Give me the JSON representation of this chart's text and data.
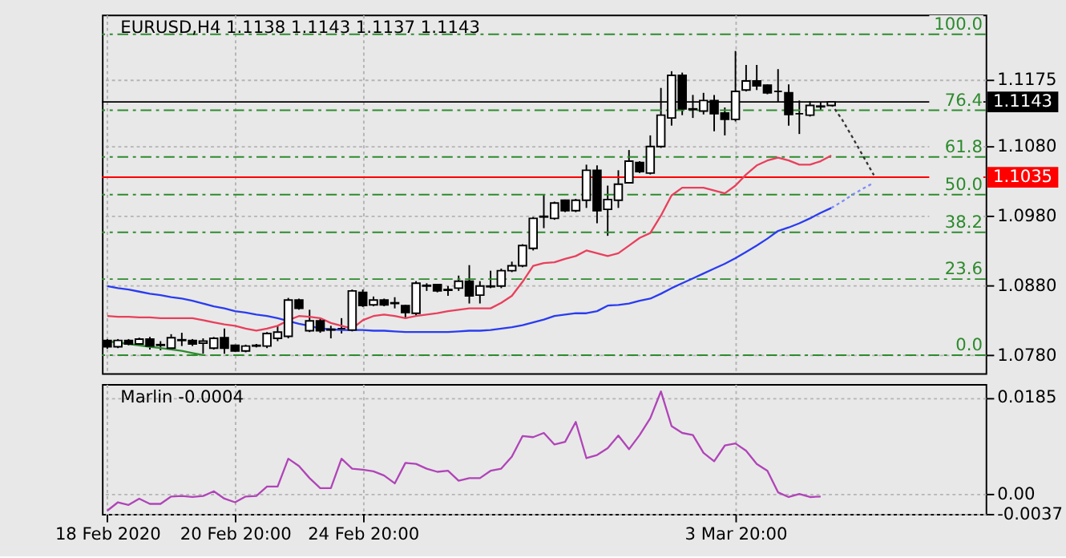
{
  "chart_data": [
    {
      "type": "candlestick",
      "title": "EURUSD,H4  1.1138 1.1143 1.1137 1.1143",
      "categories": [
        null,
        null,
        null,
        null,
        null,
        null,
        null,
        null,
        null,
        null,
        null,
        null,
        null,
        null,
        null,
        null,
        null,
        null,
        null,
        null,
        null,
        null,
        null,
        null,
        null,
        null,
        null,
        null,
        null,
        null,
        null,
        null,
        null,
        null,
        null,
        null,
        null,
        null,
        null,
        null,
        null,
        null,
        null,
        null,
        null,
        null,
        null,
        null,
        null,
        null,
        null,
        null,
        null,
        null,
        null,
        null,
        null,
        null,
        null,
        null,
        null,
        null,
        null,
        null,
        null,
        null,
        null,
        null,
        null,
        null,
        null,
        null,
        null,
        null,
        null,
        null,
        null,
        null,
        null,
        null,
        null,
        null,
        null
      ],
      "ohlc": [
        [
          1.0801,
          1.0803,
          1.0789,
          1.0792
        ],
        [
          1.0792,
          1.0803,
          1.079,
          1.0801
        ],
        [
          1.0801,
          1.0803,
          1.0794,
          1.0796
        ],
        [
          1.0796,
          1.0805,
          1.0794,
          1.0803
        ],
        [
          1.0803,
          1.0806,
          1.0788,
          1.0793
        ],
        [
          1.0794,
          1.08,
          1.0787,
          1.0795
        ],
        [
          1.079,
          1.081,
          1.0788,
          1.0805
        ],
        [
          1.0802,
          1.0812,
          1.0793,
          1.0801
        ],
        [
          1.0801,
          1.0803,
          1.0793,
          1.0796
        ],
        [
          1.0797,
          1.0804,
          1.0782,
          1.08
        ],
        [
          1.079,
          1.0806,
          1.0788,
          1.0804
        ],
        [
          1.0805,
          1.0818,
          1.0782,
          1.079
        ],
        [
          1.0794,
          1.0795,
          1.0785,
          1.0786
        ],
        [
          1.0786,
          1.0795,
          1.0784,
          1.0793
        ],
        [
          1.0793,
          1.0796,
          1.0791,
          1.0794
        ],
        [
          1.0793,
          1.0813,
          1.079,
          1.0811
        ],
        [
          1.0804,
          1.0822,
          1.08,
          1.0813
        ],
        [
          1.0807,
          1.0862,
          1.0804,
          1.0859
        ],
        [
          1.0859,
          1.0861,
          1.0845,
          1.0847
        ],
        [
          1.0815,
          1.0845,
          1.0813,
          1.0829
        ],
        [
          1.0829,
          1.0832,
          1.0812,
          1.0815
        ],
        [
          1.0816,
          1.0822,
          1.0804,
          1.0817
        ],
        [
          1.0818,
          1.0833,
          1.0811,
          1.0818
        ],
        [
          1.0816,
          1.0874,
          1.0814,
          1.0872
        ],
        [
          1.087,
          1.0874,
          1.0849,
          1.0851
        ],
        [
          1.0852,
          1.0864,
          1.085,
          1.0859
        ],
        [
          1.0859,
          1.0861,
          1.085,
          1.0852
        ],
        [
          1.0854,
          1.0863,
          1.0847,
          1.0855
        ],
        [
          1.0851,
          1.0852,
          1.0833,
          1.0841
        ],
        [
          1.084,
          1.0886,
          1.0836,
          1.0883
        ],
        [
          1.088,
          1.0883,
          1.0872,
          1.0879
        ],
        [
          1.0881,
          1.0882,
          1.087,
          1.0872
        ],
        [
          1.0873,
          1.0879,
          1.0865,
          1.0874
        ],
        [
          1.0876,
          1.0894,
          1.0872,
          1.0886
        ],
        [
          1.0886,
          1.0909,
          1.0854,
          1.0865
        ],
        [
          1.0866,
          1.0886,
          1.0854,
          1.0879
        ],
        [
          1.0878,
          1.0901,
          1.0876,
          1.0879
        ],
        [
          1.0879,
          1.0904,
          1.0876,
          1.0901
        ],
        [
          1.0901,
          1.0914,
          1.0899,
          1.0908
        ],
        [
          1.0908,
          1.0939,
          1.0906,
          1.0937
        ],
        [
          1.0933,
          1.0978,
          1.093,
          1.0976
        ],
        [
          1.0978,
          1.101,
          1.0962,
          1.0979
        ],
        [
          1.0976,
          1.1,
          1.0974,
          1.0998
        ],
        [
          1.1002,
          1.1003,
          1.0985,
          1.0987
        ],
        [
          1.0987,
          1.1004,
          1.0985,
          1.1002
        ],
        [
          1.1002,
          1.1053,
          1.0991,
          1.1045
        ],
        [
          1.1045,
          1.1052,
          1.0969,
          1.0987
        ],
        [
          1.0989,
          1.1023,
          1.0951,
          1.1003
        ],
        [
          1.1002,
          1.1045,
          1.0991,
          1.1025
        ],
        [
          1.1027,
          1.1074,
          1.1027,
          1.1058
        ],
        [
          1.1056,
          1.1058,
          1.1041,
          1.1043
        ],
        [
          1.1041,
          1.1095,
          1.1039,
          1.1079
        ],
        [
          1.1079,
          1.1163,
          1.1077,
          1.1124
        ],
        [
          1.112,
          1.1187,
          1.1109,
          1.1181
        ],
        [
          1.1181,
          1.1185,
          1.1124,
          1.1133
        ],
        [
          1.1133,
          1.1153,
          1.112,
          1.1132
        ],
        [
          1.113,
          1.1156,
          1.1125,
          1.1145
        ],
        [
          1.1145,
          1.1153,
          1.1101,
          1.1126
        ],
        [
          1.1127,
          1.1135,
          1.1095,
          1.1118
        ],
        [
          1.1118,
          1.1216,
          1.1115,
          1.1158
        ],
        [
          1.116,
          1.1196,
          1.1158,
          1.1173
        ],
        [
          1.1173,
          1.1196,
          1.116,
          1.1166
        ],
        [
          1.1167,
          1.1168,
          1.1154,
          1.1156
        ],
        [
          1.1158,
          1.119,
          1.1142,
          1.1158
        ],
        [
          1.1156,
          1.1168,
          1.1109,
          1.1125
        ],
        [
          1.1126,
          1.1145,
          1.1097,
          1.1126
        ],
        [
          1.1124,
          1.1144,
          1.1122,
          1.1138
        ],
        [
          1.1136,
          1.1142,
          1.1131,
          1.1137
        ],
        [
          1.1138,
          1.1143,
          1.1137,
          1.1143
        ],
        null,
        null,
        null,
        null,
        null,
        null,
        null,
        null,
        null,
        null,
        null,
        null,
        null,
        null
      ],
      "series": [
        {
          "type": "line",
          "color": "#e8405c",
          "line_style": "solid",
          "values": [
            1.0836,
            1.0835,
            1.0835,
            1.0834,
            1.0834,
            1.0833,
            1.0833,
            1.0833,
            1.0833,
            1.083,
            1.0827,
            1.0824,
            1.0822,
            1.0818,
            1.0815,
            1.0818,
            1.0822,
            1.083,
            1.0836,
            1.0835,
            1.0833,
            1.0826,
            1.0822,
            1.0818,
            1.083,
            1.0836,
            1.0838,
            1.0836,
            1.0833,
            1.0836,
            1.0838,
            1.084,
            1.0843,
            1.0845,
            1.0847,
            1.0847,
            1.0847,
            1.0855,
            1.0865,
            1.0885,
            1.0908,
            1.0912,
            1.0913,
            1.0918,
            1.0922,
            1.093,
            1.0926,
            1.0922,
            1.0926,
            1.0937,
            1.0948,
            1.0955,
            1.098,
            1.1009,
            1.102,
            1.102,
            1.102,
            1.1016,
            1.1012,
            1.1023,
            1.1039,
            1.1052,
            1.1059,
            1.1063,
            1.1059,
            1.1053,
            1.1053,
            1.1058,
            1.1066,
            null,
            null,
            null,
            null,
            null,
            null,
            null,
            null,
            null,
            null,
            null,
            null,
            null,
            null
          ]
        },
        {
          "type": "line",
          "color": "#2a3cf0",
          "line_style": "solid",
          "values": [
            1.0879,
            1.0876,
            1.0874,
            1.0871,
            1.0868,
            1.0866,
            1.0863,
            1.0861,
            1.0858,
            1.0854,
            1.085,
            1.0847,
            1.0843,
            1.0841,
            1.0838,
            1.0836,
            1.0833,
            1.0829,
            1.0825,
            1.0822,
            1.0818,
            1.0817,
            1.0816,
            1.0816,
            1.0816,
            1.0815,
            1.0815,
            1.0814,
            1.0813,
            1.0813,
            1.0813,
            1.0813,
            1.0813,
            1.0814,
            1.0815,
            1.0815,
            1.0816,
            1.0818,
            1.082,
            1.0823,
            1.0827,
            1.0831,
            1.0836,
            1.0838,
            1.084,
            1.084,
            1.0843,
            1.0851,
            1.0852,
            1.0854,
            1.0858,
            1.0861,
            1.0868,
            1.0876,
            1.0883,
            1.089,
            1.0897,
            1.0904,
            1.0911,
            1.0919,
            1.0928,
            1.0937,
            1.0947,
            1.0958,
            1.0963,
            1.0969,
            1.0976,
            1.0984,
            1.0991,
            null,
            null,
            null,
            null,
            null,
            null,
            null,
            null,
            null,
            null,
            null,
            null,
            null,
            null
          ]
        },
        {
          "type": "line",
          "color": "#7f8cf7",
          "line_style": "dotted",
          "values": [
            null,
            null,
            null,
            null,
            null,
            null,
            null,
            null,
            null,
            null,
            null,
            null,
            null,
            null,
            null,
            null,
            null,
            null,
            null,
            null,
            null,
            null,
            null,
            null,
            null,
            null,
            null,
            null,
            null,
            null,
            null,
            null,
            null,
            null,
            null,
            null,
            null,
            null,
            null,
            null,
            null,
            null,
            null,
            null,
            null,
            null,
            null,
            null,
            null,
            null,
            null,
            null,
            null,
            null,
            null,
            null,
            null,
            null,
            null,
            null,
            null,
            null,
            null,
            null,
            null,
            null,
            null,
            null,
            1.0991,
            1.1,
            1.101,
            1.1019,
            1.1027,
            null,
            null,
            null,
            null,
            null,
            null,
            null,
            null,
            null,
            null
          ]
        },
        {
          "type": "line",
          "color": "#333333",
          "line_style": "dotted",
          "values": [
            null,
            null,
            null,
            null,
            null,
            null,
            null,
            null,
            null,
            null,
            null,
            null,
            null,
            null,
            null,
            null,
            null,
            null,
            null,
            null,
            null,
            null,
            null,
            null,
            null,
            null,
            null,
            null,
            null,
            null,
            null,
            null,
            null,
            null,
            null,
            null,
            null,
            null,
            null,
            null,
            null,
            null,
            null,
            null,
            null,
            null,
            null,
            null,
            null,
            null,
            null,
            null,
            null,
            null,
            null,
            null,
            null,
            null,
            null,
            null,
            null,
            null,
            null,
            null,
            null,
            null,
            null,
            null,
            1.114,
            1.1118,
            1.1092,
            1.1065,
            1.1038,
            null,
            null,
            null,
            null,
            null,
            null,
            null,
            null,
            null,
            null
          ]
        },
        {
          "type": "line",
          "color": "#2e8b2e",
          "line_style": "solid",
          "values": [
            1.08,
            1.0798,
            1.0796,
            1.0794,
            1.0792,
            1.079,
            1.0788,
            1.0786,
            1.0783,
            1.078,
            null,
            null,
            null,
            null,
            null,
            null,
            null,
            null,
            null,
            null,
            null,
            null,
            null,
            null,
            null,
            null,
            null,
            null,
            null,
            null,
            null,
            null,
            null,
            null,
            null,
            null,
            null,
            null,
            null,
            null,
            null,
            null,
            null,
            null,
            null,
            null,
            null,
            null,
            null,
            null,
            null,
            null,
            null,
            null,
            null,
            null,
            null,
            null,
            null,
            null,
            null,
            null,
            null,
            null,
            null,
            null,
            null,
            null,
            null,
            null,
            null,
            null,
            null,
            null,
            null,
            null,
            null,
            null,
            null,
            null,
            null,
            null,
            null
          ]
        }
      ],
      "ylim": [
        1.0754,
        1.1268
      ],
      "yticks": [
        {
          "value": 1.078,
          "label": "1.0780"
        },
        {
          "value": 1.088,
          "label": "1.0880"
        },
        {
          "value": 1.098,
          "label": "1.0980"
        },
        {
          "value": 1.108,
          "label": "1.1080"
        },
        {
          "value": 1.1175,
          "label": "1.1175"
        }
      ],
      "ref_lines": [
        {
          "axis": "y",
          "value": 1.078,
          "color": "#2e8b2e",
          "line_style": "dashed"
        },
        {
          "axis": "y",
          "value": 1.0889,
          "color": "#2e8b2e",
          "line_style": "dashed"
        },
        {
          "axis": "y",
          "value": 1.0956,
          "color": "#2e8b2e",
          "line_style": "dashed"
        },
        {
          "axis": "y",
          "value": 1.101,
          "color": "#2e8b2e",
          "line_style": "dashed"
        },
        {
          "axis": "y",
          "value": 1.1064,
          "color": "#2e8b2e",
          "line_style": "dashed"
        },
        {
          "axis": "y",
          "value": 1.1131,
          "color": "#2e8b2e",
          "line_style": "dashed"
        },
        {
          "axis": "y",
          "value": 1.124,
          "color": "#2e8b2e",
          "line_style": "dashed"
        },
        {
          "axis": "y",
          "value": 1.1035,
          "label": "1.1035",
          "color": "#ff0000",
          "line_style": "solid"
        },
        {
          "axis": "y",
          "value": 1.1143,
          "label": "1.1143",
          "color": "#000000",
          "line_style": "solid"
        }
      ],
      "annotations": [
        {
          "text": "0.0",
          "y": 1.078
        },
        {
          "text": "23.6",
          "y": 1.0889
        },
        {
          "text": "38.2",
          "y": 1.0956
        },
        {
          "text": "50.0",
          "y": 1.101
        },
        {
          "text": "61.8",
          "y": 1.1064
        },
        {
          "text": "76.4",
          "y": 1.1131
        },
        {
          "text": "100.0",
          "y": 1.124
        }
      ],
      "grid": true,
      "tick_labels": "y"
    },
    {
      "type": "line",
      "title": "Marlin -0.0004",
      "categories": [
        "18 Feb 2020",
        null,
        null,
        null,
        null,
        null,
        null,
        null,
        null,
        null,
        null,
        null,
        "20 Feb 20:00",
        null,
        null,
        null,
        null,
        null,
        null,
        null,
        null,
        null,
        null,
        null,
        "24 Feb 20:00",
        null,
        null,
        null,
        null,
        null,
        null,
        null,
        null,
        null,
        null,
        null,
        null,
        null,
        null,
        null,
        null,
        null,
        null,
        null,
        null,
        null,
        null,
        null,
        null,
        null,
        null,
        null,
        null,
        null,
        null,
        null,
        null,
        null,
        null,
        "3 Mar 20:00",
        null,
        null,
        null,
        null,
        null,
        null,
        null,
        null,
        null,
        null,
        null,
        null,
        null,
        null,
        null,
        null,
        null,
        null,
        null,
        null,
        null,
        null,
        null
      ],
      "series": [
        {
          "color": "#b044b8",
          "values": [
            -0.0031,
            -0.0015,
            -0.002,
            -0.0008,
            -0.0018,
            -0.0018,
            -0.0004,
            -0.0003,
            -0.0005,
            -0.0003,
            0.0006,
            -0.0008,
            -0.0015,
            -0.0004,
            -0.0003,
            0.0015,
            0.0015,
            0.0068,
            0.0054,
            0.0031,
            0.0012,
            0.0012,
            0.0068,
            0.0049,
            0.0047,
            0.0044,
            0.0036,
            0.0021,
            0.006,
            0.0058,
            0.0049,
            0.0043,
            0.0045,
            0.0026,
            0.0031,
            0.0031,
            0.0045,
            0.0049,
            0.0072,
            0.0111,
            0.0109,
            0.0117,
            0.0095,
            0.01,
            0.0138,
            0.0069,
            0.0075,
            0.0088,
            0.0112,
            0.0086,
            0.0113,
            0.0145,
            0.0196,
            0.013,
            0.0117,
            0.0113,
            0.0079,
            0.0063,
            0.0093,
            0.0097,
            0.0083,
            0.0058,
            0.0045,
            0.0004,
            -0.0005,
            0.0001,
            -0.0005,
            -0.0004,
            null,
            null,
            null,
            null,
            null,
            null,
            null,
            null,
            null,
            null,
            null,
            null,
            null,
            null,
            null
          ]
        }
      ],
      "ylim": [
        -0.0037,
        0.021
      ],
      "yticks": [
        {
          "value": 0.0185,
          "label": "0.0185"
        },
        {
          "value": 0,
          "label": "0.00"
        },
        {
          "value": -0.0037,
          "label": "-0.0037"
        }
      ],
      "grid": true
    }
  ]
}
